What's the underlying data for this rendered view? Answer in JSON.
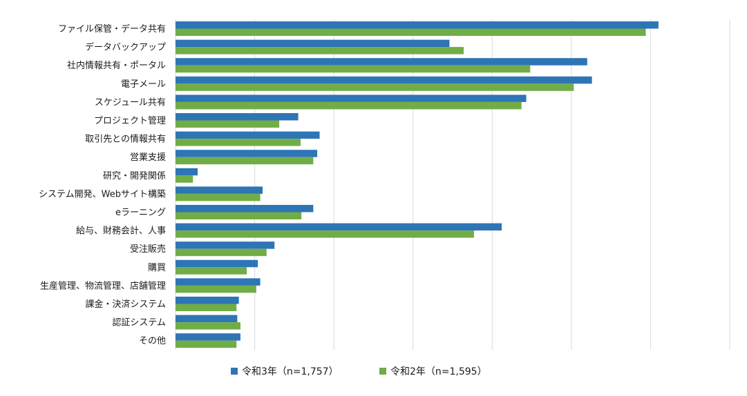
{
  "chart_data": {
    "type": "bar",
    "orientation": "horizontal",
    "categories": [
      "ファイル保管・データ共有",
      "データバックアップ",
      "社内情報共有・ポータル",
      "電子メール",
      "スケジュール共有",
      "プロジェクト管理",
      "取引先との情報共有",
      "営業支援",
      "研究・開発関係",
      "システム開発、Webサイト構築",
      "eラーニング",
      "給与、財務会計、人事",
      "受注販売",
      "購買",
      "生産管理、物流管理、店舗管理",
      "課金・決済システム",
      "認証システム",
      "その他"
    ],
    "series": [
      {
        "name": "令和3年（n=1,757）",
        "color": "#2e75b6",
        "values": [
          61.0,
          34.6,
          52.0,
          52.6,
          44.3,
          15.5,
          18.2,
          17.9,
          2.8,
          11.0,
          17.4,
          41.2,
          12.5,
          10.4,
          10.7,
          8.0,
          7.8,
          8.2
        ]
      },
      {
        "name": "令和2年（n=1,595）",
        "color": "#70ad47",
        "values": [
          59.4,
          36.4,
          44.8,
          50.3,
          43.7,
          13.1,
          15.8,
          17.4,
          2.2,
          10.7,
          15.9,
          37.7,
          11.5,
          9.0,
          10.2,
          7.7,
          8.2,
          7.7
        ]
      }
    ],
    "xlim": [
      0,
      70
    ],
    "grid_step": 10,
    "grid": true,
    "legend_position": "bottom",
    "title": "",
    "xlabel": "",
    "ylabel": ""
  }
}
